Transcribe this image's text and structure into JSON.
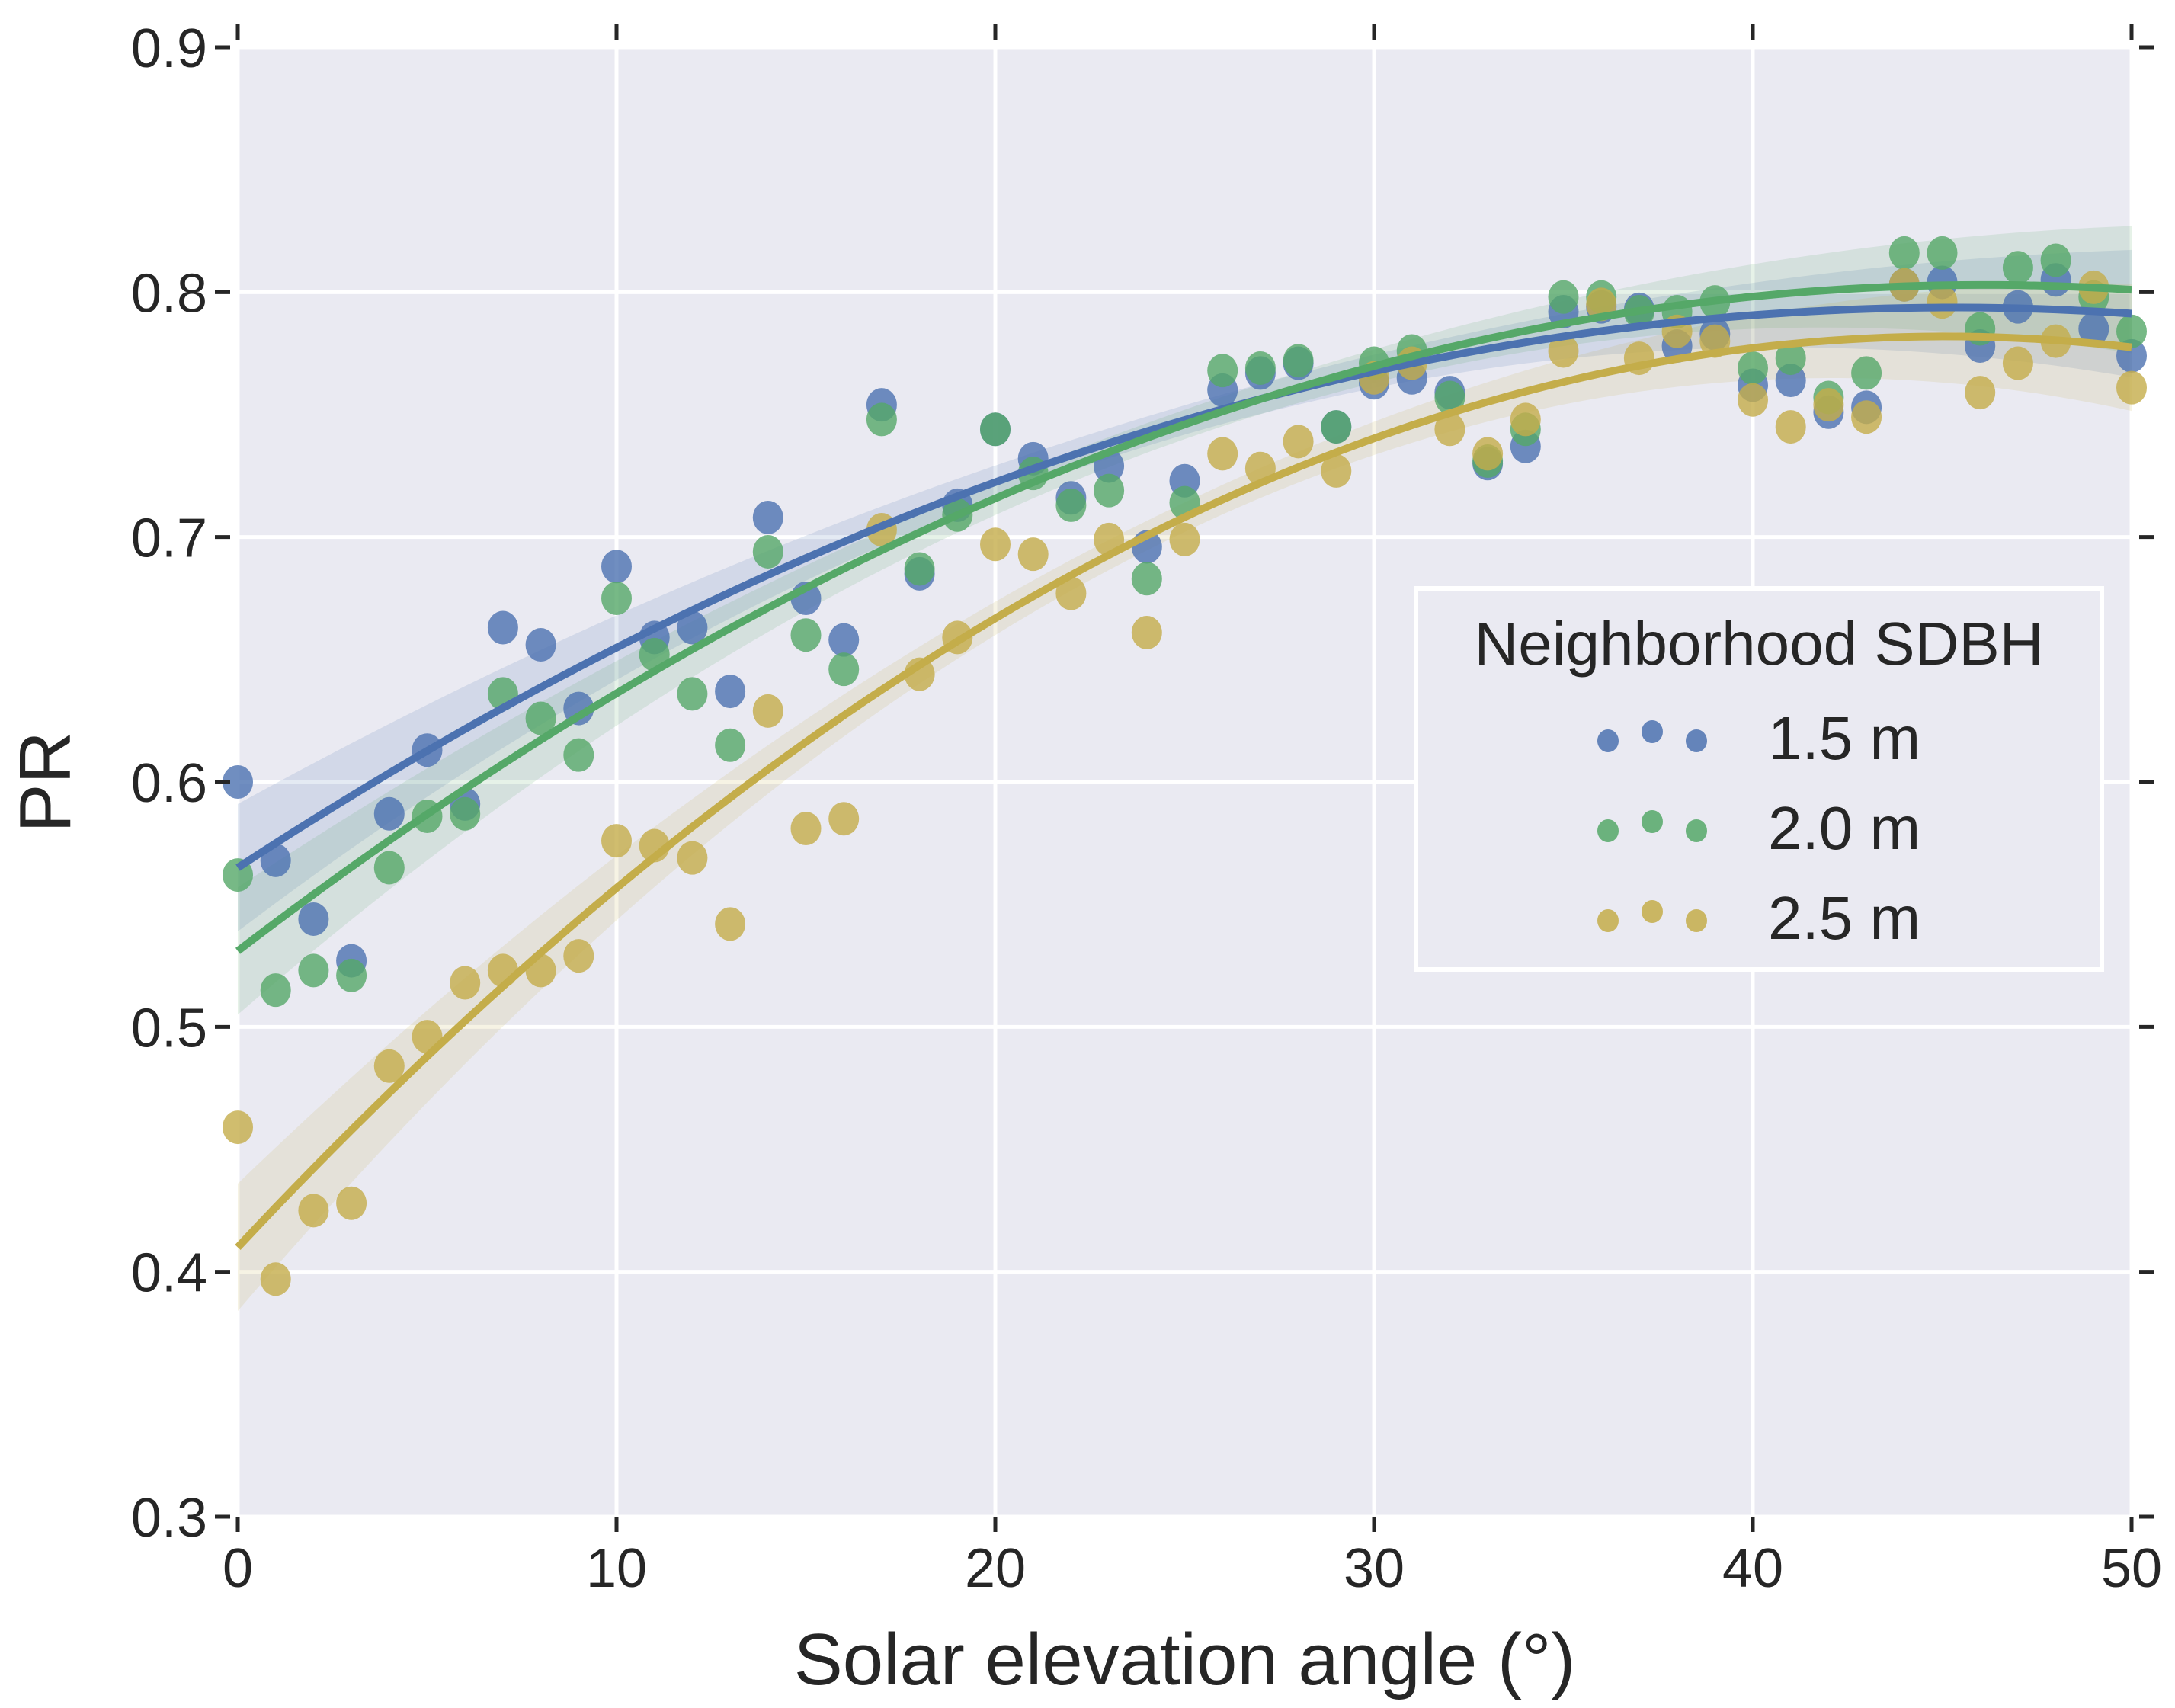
{
  "chart_data": {
    "type": "scatter",
    "title": "",
    "xlabel": "Solar elevation angle (°)",
    "ylabel": "PR",
    "xlim": [
      0,
      50
    ],
    "ylim": [
      0.3,
      0.9
    ],
    "xticks": [
      0,
      10,
      20,
      30,
      40,
      50
    ],
    "xtick_labels": [
      "0",
      "10",
      "20",
      "30",
      "40",
      "50"
    ],
    "yticks": [
      0.3,
      0.4,
      0.5,
      0.6,
      0.7,
      0.8,
      0.9
    ],
    "ytick_labels": [
      "0.3",
      "0.4",
      "0.5",
      "0.6",
      "0.7",
      "0.8",
      "0.9"
    ],
    "grid": true,
    "background": "#EAEAF2",
    "legend": {
      "title": "Neighborhood SDBH",
      "placement": "center-right"
    },
    "x": [
      0,
      1,
      2,
      3,
      4,
      5,
      6,
      7,
      8,
      9,
      10,
      11,
      12,
      13,
      14,
      15,
      16,
      17,
      18,
      19,
      20,
      21,
      22,
      23,
      24,
      25,
      26,
      27,
      28,
      29,
      30,
      31,
      32,
      33,
      34,
      35,
      36,
      37,
      38,
      39,
      40,
      41,
      42,
      43,
      44,
      45,
      46,
      47,
      48,
      49,
      50
    ],
    "series": [
      {
        "name": "1.5 m",
        "color": "#4C72B0",
        "values": [
          0.6,
          0.568,
          0.544,
          0.527,
          0.587,
          0.613,
          0.591,
          0.663,
          0.656,
          0.63,
          0.688,
          0.659,
          0.663,
          0.637,
          0.708,
          0.675,
          0.658,
          0.754,
          0.685,
          0.713,
          0.744,
          0.732,
          0.716,
          0.729,
          0.696,
          0.723,
          0.76,
          0.767,
          0.771,
          0.745,
          0.763,
          0.765,
          0.759,
          0.73,
          0.737,
          0.792,
          0.794,
          0.793,
          0.778,
          0.783,
          0.762,
          0.764,
          0.751,
          0.753,
          0.803,
          0.804,
          0.778,
          0.794,
          0.805,
          0.785,
          0.774
        ],
        "fit": {
          "degree": 2,
          "coef": [
            0.565,
            0.0101,
            -0.0001115
          ]
        }
      },
      {
        "name": "2.0 m",
        "color": "#55A868",
        "values": [
          0.562,
          0.515,
          0.523,
          0.521,
          0.565,
          0.586,
          0.587,
          0.636,
          0.626,
          0.611,
          0.675,
          0.652,
          0.636,
          0.615,
          0.694,
          0.66,
          0.646,
          0.748,
          0.687,
          0.709,
          0.744,
          0.726,
          0.713,
          0.719,
          0.683,
          0.714,
          0.768,
          0.769,
          0.772,
          0.745,
          0.771,
          0.776,
          0.757,
          0.731,
          0.744,
          0.798,
          0.798,
          0.792,
          0.792,
          0.796,
          0.769,
          0.773,
          0.757,
          0.767,
          0.816,
          0.816,
          0.785,
          0.81,
          0.813,
          0.798,
          0.784
        ],
        "fit": {
          "degree": 2,
          "coef": [
            0.531,
            0.0118,
            -0.000128
          ]
        }
      },
      {
        "name": "2.5 m",
        "color": "#C4AD4A",
        "values": [
          0.459,
          0.397,
          0.425,
          0.428,
          0.484,
          0.496,
          0.518,
          0.523,
          0.523,
          0.529,
          0.576,
          0.574,
          0.569,
          0.542,
          0.629,
          0.581,
          0.585,
          0.703,
          0.644,
          0.659,
          0.697,
          0.693,
          0.677,
          0.699,
          0.661,
          0.699,
          0.734,
          0.728,
          0.739,
          0.727,
          0.765,
          0.771,
          0.744,
          0.734,
          0.748,
          0.776,
          0.795,
          0.773,
          0.784,
          0.78,
          0.756,
          0.745,
          0.754,
          0.749,
          0.803,
          0.796,
          0.759,
          0.771,
          0.78,
          0.802,
          0.761
        ],
        "fit": {
          "degree": 2,
          "coef": [
            0.41,
            0.0165,
            -0.000183
          ]
        }
      }
    ]
  }
}
